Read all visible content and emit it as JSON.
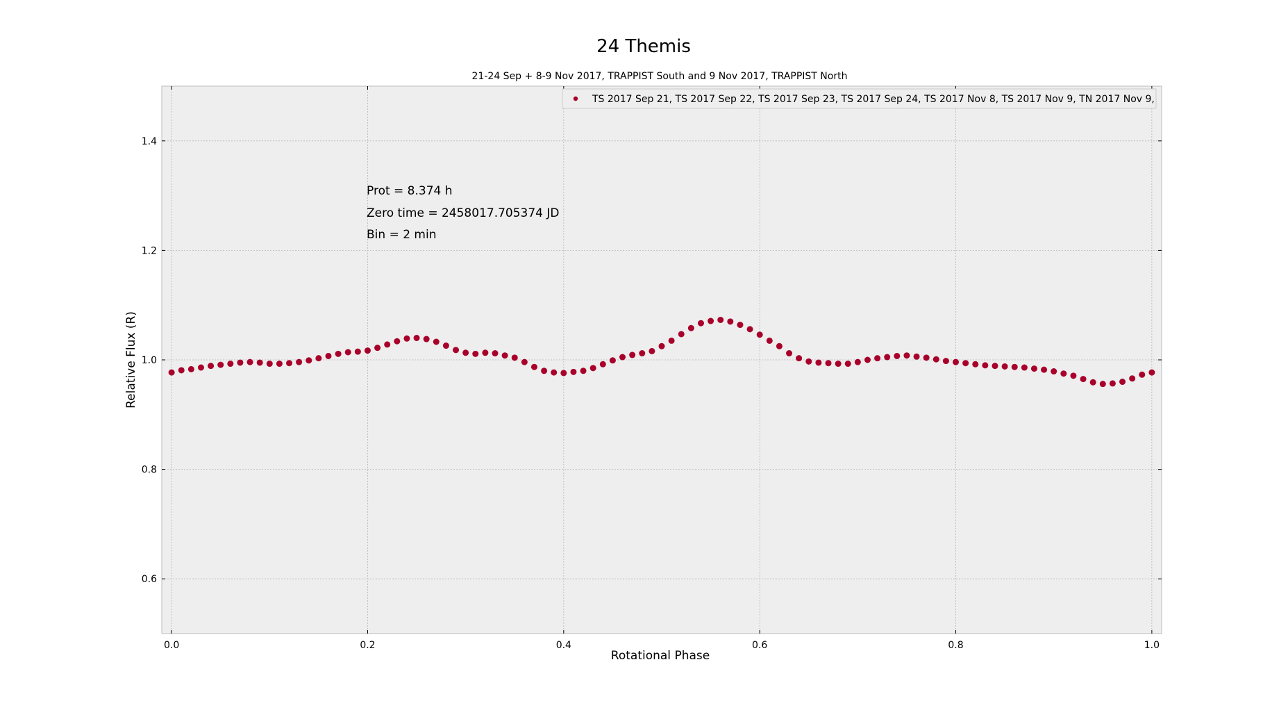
{
  "chart_data": {
    "type": "scatter",
    "title": "24 Themis",
    "subtitle": "21-24 Sep + 8-9 Nov 2017, TRAPPIST South and 9 Nov 2017, TRAPPIST North",
    "xlabel": "Rotational Phase",
    "ylabel": "Relative Flux (R)",
    "xlim": [
      -0.01,
      1.01
    ],
    "ylim": [
      0.5,
      1.5
    ],
    "xticks": [
      "0.0",
      "0.2",
      "0.4",
      "0.6",
      "0.8",
      "1.0"
    ],
    "yticks": [
      "0.6",
      "0.8",
      "1.0",
      "1.2",
      "1.4"
    ],
    "grid": true,
    "legend_position": "top-right",
    "annotations": [
      "Prot = 8.374 h",
      "Zero time = 2458017.705374 JD",
      "Bin = 2 min"
    ],
    "series": [
      {
        "name": "TS 2017 Sep 21, TS 2017 Sep 22, TS 2017 Sep 23, TS 2017 Sep 24, TS 2017 Nov 8, TS 2017 Nov 9, TN 2017 Nov 9,",
        "color": "#a8002a",
        "points": [
          [
            0.0,
            0.977
          ],
          [
            0.01,
            0.981
          ],
          [
            0.02,
            0.983
          ],
          [
            0.03,
            0.986
          ],
          [
            0.04,
            0.989
          ],
          [
            0.05,
            0.991
          ],
          [
            0.06,
            0.993
          ],
          [
            0.07,
            0.995
          ],
          [
            0.08,
            0.996
          ],
          [
            0.09,
            0.995
          ],
          [
            0.1,
            0.993
          ],
          [
            0.11,
            0.993
          ],
          [
            0.12,
            0.994
          ],
          [
            0.13,
            0.996
          ],
          [
            0.14,
            0.999
          ],
          [
            0.15,
            1.003
          ],
          [
            0.16,
            1.007
          ],
          [
            0.17,
            1.011
          ],
          [
            0.18,
            1.014
          ],
          [
            0.19,
            1.015
          ],
          [
            0.2,
            1.017
          ],
          [
            0.21,
            1.022
          ],
          [
            0.22,
            1.028
          ],
          [
            0.23,
            1.034
          ],
          [
            0.24,
            1.039
          ],
          [
            0.25,
            1.04
          ],
          [
            0.26,
            1.038
          ],
          [
            0.27,
            1.033
          ],
          [
            0.28,
            1.026
          ],
          [
            0.29,
            1.018
          ],
          [
            0.3,
            1.013
          ],
          [
            0.31,
            1.011
          ],
          [
            0.32,
            1.013
          ],
          [
            0.33,
            1.012
          ],
          [
            0.34,
            1.008
          ],
          [
            0.35,
            1.004
          ],
          [
            0.36,
            0.996
          ],
          [
            0.37,
            0.987
          ],
          [
            0.38,
            0.98
          ],
          [
            0.39,
            0.977
          ],
          [
            0.4,
            0.976
          ],
          [
            0.41,
            0.978
          ],
          [
            0.42,
            0.98
          ],
          [
            0.43,
            0.985
          ],
          [
            0.44,
            0.992
          ],
          [
            0.45,
            0.999
          ],
          [
            0.46,
            1.005
          ],
          [
            0.47,
            1.009
          ],
          [
            0.48,
            1.012
          ],
          [
            0.49,
            1.016
          ],
          [
            0.5,
            1.025
          ],
          [
            0.51,
            1.035
          ],
          [
            0.52,
            1.047
          ],
          [
            0.53,
            1.058
          ],
          [
            0.54,
            1.067
          ],
          [
            0.55,
            1.071
          ],
          [
            0.56,
            1.073
          ],
          [
            0.57,
            1.07
          ],
          [
            0.58,
            1.064
          ],
          [
            0.59,
            1.056
          ],
          [
            0.6,
            1.046
          ],
          [
            0.61,
            1.035
          ],
          [
            0.62,
            1.025
          ],
          [
            0.63,
            1.012
          ],
          [
            0.64,
            1.003
          ],
          [
            0.65,
            0.997
          ],
          [
            0.66,
            0.995
          ],
          [
            0.67,
            0.994
          ],
          [
            0.68,
            0.993
          ],
          [
            0.69,
            0.993
          ],
          [
            0.7,
            0.996
          ],
          [
            0.71,
            1.0
          ],
          [
            0.72,
            1.003
          ],
          [
            0.73,
            1.005
          ],
          [
            0.74,
            1.007
          ],
          [
            0.75,
            1.008
          ],
          [
            0.76,
            1.006
          ],
          [
            0.77,
            1.004
          ],
          [
            0.78,
            1.001
          ],
          [
            0.79,
            0.998
          ],
          [
            0.8,
            0.996
          ],
          [
            0.81,
            0.994
          ],
          [
            0.82,
            0.992
          ],
          [
            0.83,
            0.99
          ],
          [
            0.84,
            0.989
          ],
          [
            0.85,
            0.988
          ],
          [
            0.86,
            0.987
          ],
          [
            0.87,
            0.986
          ],
          [
            0.88,
            0.984
          ],
          [
            0.89,
            0.982
          ],
          [
            0.9,
            0.979
          ],
          [
            0.91,
            0.975
          ],
          [
            0.92,
            0.971
          ],
          [
            0.93,
            0.965
          ],
          [
            0.94,
            0.959
          ],
          [
            0.95,
            0.956
          ],
          [
            0.96,
            0.957
          ],
          [
            0.97,
            0.96
          ],
          [
            0.98,
            0.966
          ],
          [
            0.99,
            0.973
          ],
          [
            1.0,
            0.977
          ]
        ]
      }
    ]
  }
}
